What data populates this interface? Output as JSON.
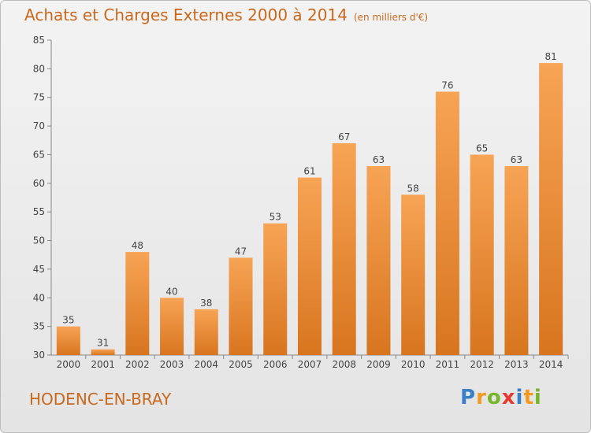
{
  "chart_data": {
    "type": "bar",
    "title": "Achats et Charges Externes 2000 à 2014",
    "subtitle": "(en milliers d'€)",
    "categories": [
      "2000",
      "2001",
      "2002",
      "2003",
      "2004",
      "2005",
      "2006",
      "2007",
      "2008",
      "2009",
      "2010",
      "2011",
      "2012",
      "2013",
      "2014"
    ],
    "values": [
      35,
      31,
      48,
      40,
      38,
      47,
      53,
      61,
      67,
      63,
      58,
      76,
      65,
      63,
      81
    ],
    "ylim": [
      30,
      85
    ],
    "yticks": [
      30,
      35,
      40,
      45,
      50,
      55,
      60,
      65,
      70,
      75,
      80,
      85
    ],
    "xlabel": "",
    "ylabel": "",
    "grid": false,
    "bar_color_top": "#f7a455",
    "bar_color_bottom": "#d8751f",
    "title_color": "#c8691e"
  },
  "footer": {
    "commune": "HODENC-EN-BRAY",
    "logo": {
      "text": "Proxiti",
      "letters": [
        {
          "ch": "P",
          "color": "#3a7fc7"
        },
        {
          "ch": "r",
          "color": "#f39a1f"
        },
        {
          "ch": "o",
          "color": "#79b52b"
        },
        {
          "ch": "x",
          "color": "#e63b2e"
        },
        {
          "ch": "i",
          "color": "#3a7fc7"
        },
        {
          "ch": "t",
          "color": "#f39a1f"
        },
        {
          "ch": "i",
          "color": "#79b52b"
        }
      ]
    }
  }
}
